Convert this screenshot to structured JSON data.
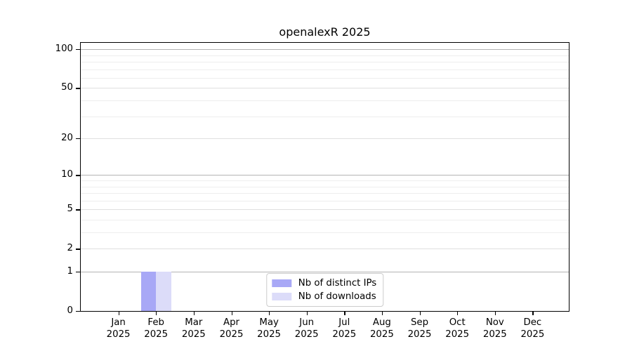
{
  "chart_data": {
    "type": "bar",
    "title": "openalexR 2025",
    "categories": [
      "Jan 2025",
      "Feb 2025",
      "Mar 2025",
      "Apr 2025",
      "May 2025",
      "Jun 2025",
      "Jul 2025",
      "Aug 2025",
      "Sep 2025",
      "Oct 2025",
      "Nov 2025",
      "Dec 2025"
    ],
    "series": [
      {
        "name": "Nb of distinct IPs",
        "color": "#a8a8f6",
        "values": [
          0,
          1,
          0,
          0,
          0,
          0,
          0,
          0,
          0,
          0,
          0,
          0
        ]
      },
      {
        "name": "Nb of downloads",
        "color": "#dcdcf9",
        "values": [
          0,
          1,
          0,
          0,
          0,
          0,
          0,
          0,
          0,
          0,
          0,
          0
        ]
      }
    ],
    "y_axis": {
      "scale": "log1p",
      "ticks": [
        0,
        1,
        2,
        5,
        10,
        20,
        50,
        100
      ],
      "major_gridlines": [
        1,
        10,
        100
      ],
      "mid_gridlines": [
        2,
        5,
        20,
        50
      ],
      "minor_gridlines": [
        3,
        4,
        6,
        7,
        8,
        9,
        30,
        40,
        60,
        70,
        80,
        90
      ],
      "range": [
        0,
        113
      ]
    },
    "legend": {
      "position": "lower center"
    },
    "grid": true,
    "xlabel": "",
    "ylabel": ""
  }
}
